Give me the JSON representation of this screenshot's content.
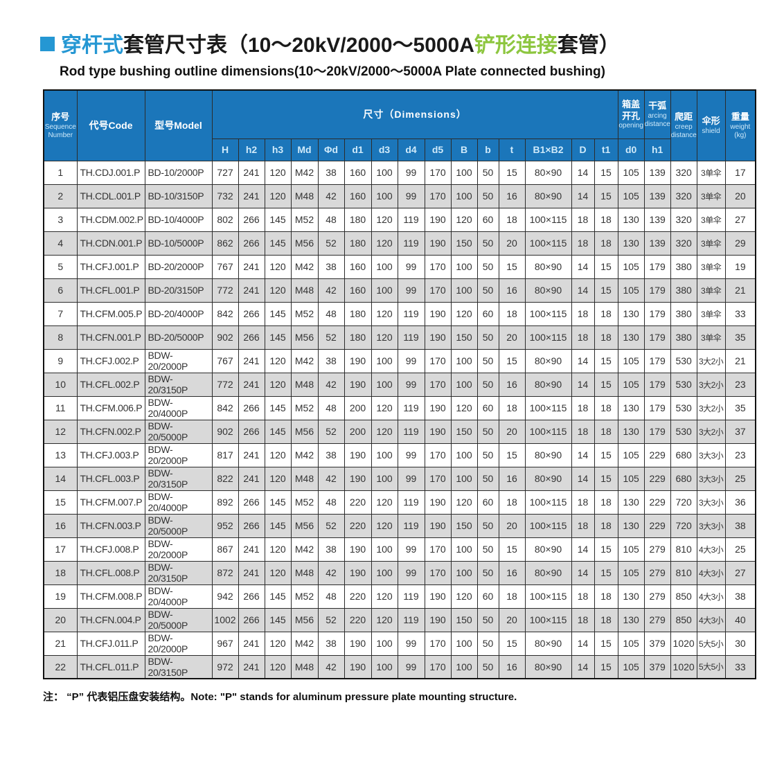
{
  "colors": {
    "header_bg": "#1b76ba",
    "accent_blue": "#2597d3",
    "accent_green": "#8dc63f",
    "stripe": "#d9d9d9"
  },
  "title": {
    "part1": "穿杆式",
    "part2": "套管尺寸表（10～20kV/2000～5000A",
    "part3": "铲形连接",
    "part4": "套管）",
    "subtitle": "Rod type bushing outline dimensions(10～20kV/2000～5000A Plate connected bushing)"
  },
  "table": {
    "header": {
      "seq_cn": "序号",
      "seq_en": "Sequence Number",
      "code": "代号Code",
      "model": "型号Model",
      "dims": "尺寸（Dimensions）",
      "dim_cols": [
        "H",
        "h2",
        "h3",
        "Md",
        "Φd",
        "d1",
        "d3",
        "d4",
        "d5",
        "B",
        "b",
        "t",
        "B1×B2",
        "D",
        "t1"
      ],
      "opening_cn": "箱盖开孔",
      "opening_en": "opening",
      "opening_sub": "d0",
      "arcing_cn": "干弧",
      "arcing_en": "arcing distance",
      "arcing_sub": "h1",
      "creep_cn": "爬距",
      "creep_en": "creep distance",
      "shield_cn": "伞形",
      "shield_en": "shield",
      "weight_cn": "重量",
      "weight_en": "weight (kg)"
    },
    "rows": [
      [
        "1",
        "TH.CDJ.001.P",
        "BD-10/2000P",
        "727",
        "241",
        "120",
        "M42",
        "38",
        "160",
        "100",
        "99",
        "170",
        "100",
        "50",
        "15",
        "80×90",
        "14",
        "15",
        "105",
        "139",
        "320",
        "3单伞",
        "17"
      ],
      [
        "2",
        "TH.CDL.001.P",
        "BD-10/3150P",
        "732",
        "241",
        "120",
        "M48",
        "42",
        "160",
        "100",
        "99",
        "170",
        "100",
        "50",
        "16",
        "80×90",
        "14",
        "15",
        "105",
        "139",
        "320",
        "3单伞",
        "20"
      ],
      [
        "3",
        "TH.CDM.002.P",
        "BD-10/4000P",
        "802",
        "266",
        "145",
        "M52",
        "48",
        "180",
        "120",
        "119",
        "190",
        "120",
        "60",
        "18",
        "100×115",
        "18",
        "18",
        "130",
        "139",
        "320",
        "3单伞",
        "27"
      ],
      [
        "4",
        "TH.CDN.001.P",
        "BD-10/5000P",
        "862",
        "266",
        "145",
        "M56",
        "52",
        "180",
        "120",
        "119",
        "190",
        "150",
        "50",
        "20",
        "100×115",
        "18",
        "18",
        "130",
        "139",
        "320",
        "3单伞",
        "29"
      ],
      [
        "5",
        "TH.CFJ.001.P",
        "BD-20/2000P",
        "767",
        "241",
        "120",
        "M42",
        "38",
        "160",
        "100",
        "99",
        "170",
        "100",
        "50",
        "15",
        "80×90",
        "14",
        "15",
        "105",
        "179",
        "380",
        "3单伞",
        "19"
      ],
      [
        "6",
        "TH.CFL.001.P",
        "BD-20/3150P",
        "772",
        "241",
        "120",
        "M48",
        "42",
        "160",
        "100",
        "99",
        "170",
        "100",
        "50",
        "16",
        "80×90",
        "14",
        "15",
        "105",
        "179",
        "380",
        "3单伞",
        "21"
      ],
      [
        "7",
        "TH.CFM.005.P",
        "BD-20/4000P",
        "842",
        "266",
        "145",
        "M52",
        "48",
        "180",
        "120",
        "119",
        "190",
        "120",
        "60",
        "18",
        "100×115",
        "18",
        "18",
        "130",
        "179",
        "380",
        "3单伞",
        "33"
      ],
      [
        "8",
        "TH.CFN.001.P",
        "BD-20/5000P",
        "902",
        "266",
        "145",
        "M56",
        "52",
        "180",
        "120",
        "119",
        "190",
        "150",
        "50",
        "20",
        "100×115",
        "18",
        "18",
        "130",
        "179",
        "380",
        "3单伞",
        "35"
      ],
      [
        "9",
        "TH.CFJ.002.P",
        "BDW-20/2000P",
        "767",
        "241",
        "120",
        "M42",
        "38",
        "190",
        "100",
        "99",
        "170",
        "100",
        "50",
        "15",
        "80×90",
        "14",
        "15",
        "105",
        "179",
        "530",
        "3大2小",
        "21"
      ],
      [
        "10",
        "TH.CFL.002.P",
        "BDW-20/3150P",
        "772",
        "241",
        "120",
        "M48",
        "42",
        "190",
        "100",
        "99",
        "170",
        "100",
        "50",
        "16",
        "80×90",
        "14",
        "15",
        "105",
        "179",
        "530",
        "3大2小",
        "23"
      ],
      [
        "11",
        "TH.CFM.006.P",
        "BDW-20/4000P",
        "842",
        "266",
        "145",
        "M52",
        "48",
        "200",
        "120",
        "119",
        "190",
        "120",
        "60",
        "18",
        "100×115",
        "18",
        "18",
        "130",
        "179",
        "530",
        "3大2小",
        "35"
      ],
      [
        "12",
        "TH.CFN.002.P",
        "BDW-20/5000P",
        "902",
        "266",
        "145",
        "M56",
        "52",
        "200",
        "120",
        "119",
        "190",
        "150",
        "50",
        "20",
        "100×115",
        "18",
        "18",
        "130",
        "179",
        "530",
        "3大2小",
        "37"
      ],
      [
        "13",
        "TH.CFJ.003.P",
        "BDW-20/2000P",
        "817",
        "241",
        "120",
        "M42",
        "38",
        "190",
        "100",
        "99",
        "170",
        "100",
        "50",
        "15",
        "80×90",
        "14",
        "15",
        "105",
        "229",
        "680",
        "3大3小",
        "23"
      ],
      [
        "14",
        "TH.CFL.003.P",
        "BDW-20/3150P",
        "822",
        "241",
        "120",
        "M48",
        "42",
        "190",
        "100",
        "99",
        "170",
        "100",
        "50",
        "16",
        "80×90",
        "14",
        "15",
        "105",
        "229",
        "680",
        "3大3小",
        "25"
      ],
      [
        "15",
        "TH.CFM.007.P",
        "BDW-20/4000P",
        "892",
        "266",
        "145",
        "M52",
        "48",
        "220",
        "120",
        "119",
        "190",
        "120",
        "60",
        "18",
        "100×115",
        "18",
        "18",
        "130",
        "229",
        "720",
        "3大3小",
        "36"
      ],
      [
        "16",
        "TH.CFN.003.P",
        "BDW-20/5000P",
        "952",
        "266",
        "145",
        "M56",
        "52",
        "220",
        "120",
        "119",
        "190",
        "150",
        "50",
        "20",
        "100×115",
        "18",
        "18",
        "130",
        "229",
        "720",
        "3大3小",
        "38"
      ],
      [
        "17",
        "TH.CFJ.008.P",
        "BDW-20/2000P",
        "867",
        "241",
        "120",
        "M42",
        "38",
        "190",
        "100",
        "99",
        "170",
        "100",
        "50",
        "15",
        "80×90",
        "14",
        "15",
        "105",
        "279",
        "810",
        "4大3小",
        "25"
      ],
      [
        "18",
        "TH.CFL.008.P",
        "BDW-20/3150P",
        "872",
        "241",
        "120",
        "M48",
        "42",
        "190",
        "100",
        "99",
        "170",
        "100",
        "50",
        "16",
        "80×90",
        "14",
        "15",
        "105",
        "279",
        "810",
        "4大3小",
        "27"
      ],
      [
        "19",
        "TH.CFM.008.P",
        "BDW-20/4000P",
        "942",
        "266",
        "145",
        "M52",
        "48",
        "220",
        "120",
        "119",
        "190",
        "120",
        "60",
        "18",
        "100×115",
        "18",
        "18",
        "130",
        "279",
        "850",
        "4大3小",
        "38"
      ],
      [
        "20",
        "TH.CFN.004.P",
        "BDW-20/5000P",
        "1002",
        "266",
        "145",
        "M56",
        "52",
        "220",
        "120",
        "119",
        "190",
        "150",
        "50",
        "20",
        "100×115",
        "18",
        "18",
        "130",
        "279",
        "850",
        "4大3小",
        "40"
      ],
      [
        "21",
        "TH.CFJ.011.P",
        "BDW-20/2000P",
        "967",
        "241",
        "120",
        "M42",
        "38",
        "190",
        "100",
        "99",
        "170",
        "100",
        "50",
        "15",
        "80×90",
        "14",
        "15",
        "105",
        "379",
        "1020",
        "5大5小",
        "30"
      ],
      [
        "22",
        "TH.CFL.011.P",
        "BDW-20/3150P",
        "972",
        "241",
        "120",
        "M48",
        "42",
        "190",
        "100",
        "99",
        "170",
        "100",
        "50",
        "16",
        "80×90",
        "14",
        "15",
        "105",
        "379",
        "1020",
        "5大5小",
        "33"
      ]
    ]
  },
  "note": "注： “P” 代表铝压盘安装结构。Note: \"P\" stands for aluminum pressure plate mounting structure."
}
